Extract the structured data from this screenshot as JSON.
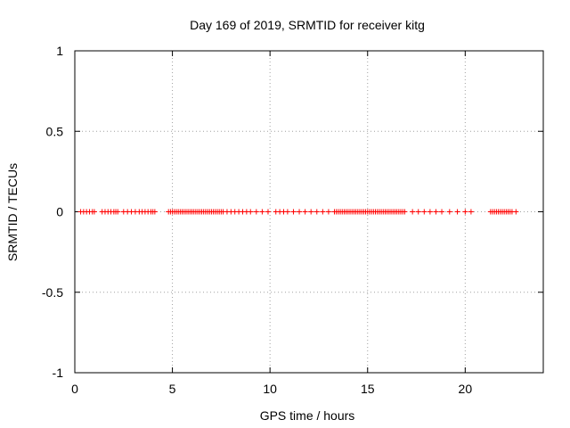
{
  "chart_data": {
    "type": "scatter",
    "title": "Day 169 of 2019, SRMTID for receiver kitg",
    "xlabel": "GPS time / hours",
    "ylabel": "SRMTID / TECUs",
    "xlim": [
      0,
      24
    ],
    "ylim": [
      -1,
      1
    ],
    "xticks": [
      0,
      5,
      10,
      15,
      20
    ],
    "yticks": [
      -1,
      -0.5,
      0,
      0.5,
      1
    ],
    "xtick_labels": [
      "0",
      "5",
      "10",
      "15",
      "20"
    ],
    "ytick_labels": [
      "-1",
      "-0.5",
      "0",
      "0.5",
      "1"
    ],
    "grid": true,
    "marker": "+",
    "series": [
      {
        "name": "SRMTID",
        "color": "#ff0000",
        "points_note": "all observed samples lie at 0 TECU; dense coverage 4.8–7.6 h and 13.3–16.9 h, sparser elsewhere between 0.3 h and 22.6 h",
        "x": [
          0.3,
          0.45,
          0.6,
          0.75,
          0.9,
          1.0,
          1.4,
          1.55,
          1.7,
          1.85,
          2.0,
          2.1,
          2.2,
          2.5,
          2.7,
          2.9,
          3.1,
          3.3,
          3.45,
          3.6,
          3.75,
          3.9,
          4.0,
          4.1,
          4.8,
          4.9,
          5.0,
          5.1,
          5.2,
          5.3,
          5.4,
          5.5,
          5.6,
          5.7,
          5.8,
          5.9,
          6.0,
          6.1,
          6.2,
          6.3,
          6.4,
          6.5,
          6.6,
          6.7,
          6.8,
          6.9,
          7.0,
          7.1,
          7.2,
          7.3,
          7.4,
          7.5,
          7.6,
          7.8,
          8.0,
          8.2,
          8.4,
          8.6,
          8.8,
          9.0,
          9.3,
          9.6,
          9.9,
          10.3,
          10.5,
          10.7,
          10.9,
          11.2,
          11.5,
          11.8,
          12.1,
          12.4,
          12.7,
          13.0,
          13.3,
          13.4,
          13.5,
          13.6,
          13.7,
          13.8,
          13.9,
          14.0,
          14.1,
          14.2,
          14.3,
          14.4,
          14.5,
          14.6,
          14.7,
          14.8,
          14.9,
          15.0,
          15.1,
          15.2,
          15.3,
          15.4,
          15.5,
          15.6,
          15.7,
          15.8,
          15.9,
          16.0,
          16.1,
          16.2,
          16.3,
          16.4,
          16.5,
          16.6,
          16.7,
          16.8,
          16.9,
          17.3,
          17.6,
          17.9,
          18.2,
          18.5,
          18.8,
          19.2,
          19.6,
          20.0,
          20.3,
          21.3,
          21.4,
          21.5,
          21.6,
          21.7,
          21.8,
          21.9,
          22.0,
          22.1,
          22.2,
          22.3,
          22.4,
          22.6
        ],
        "y_value": 0
      }
    ]
  }
}
